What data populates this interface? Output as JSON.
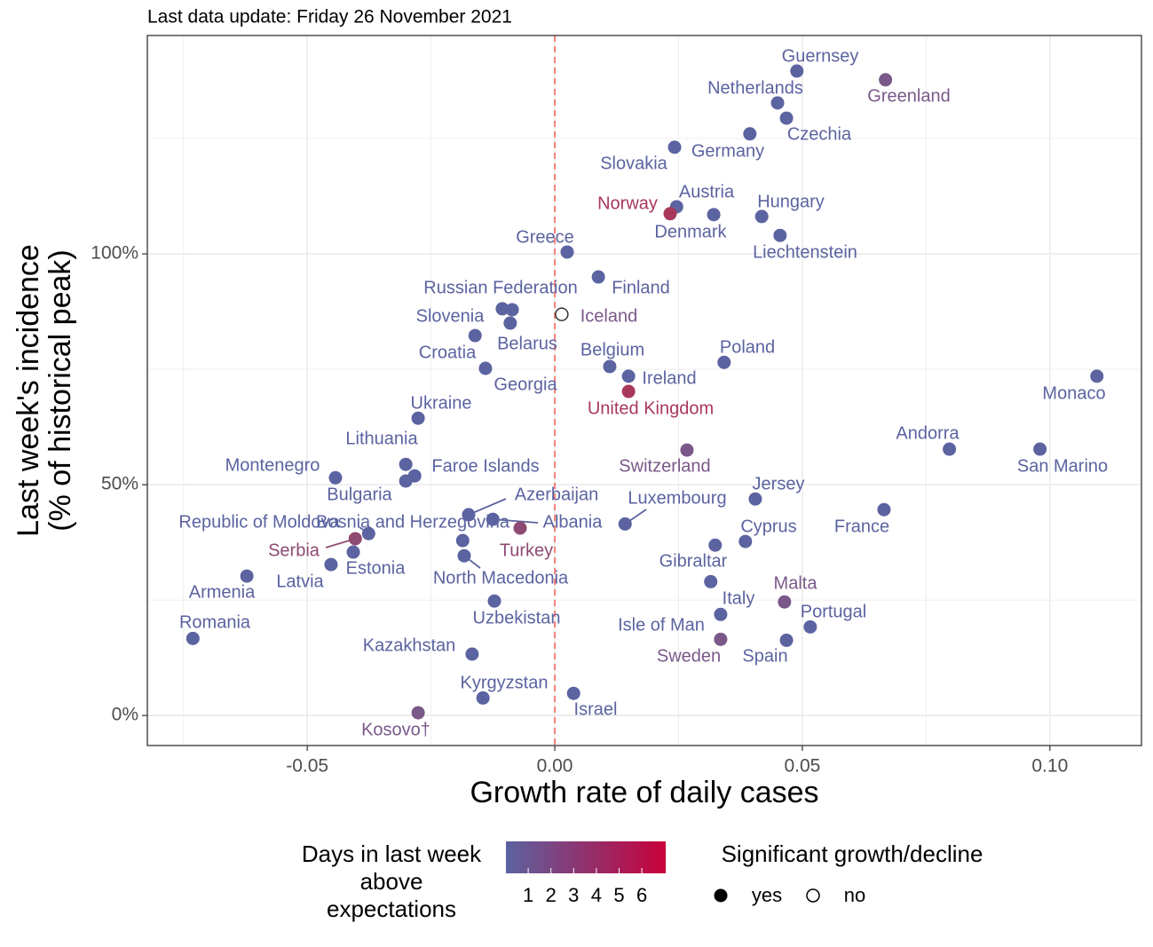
{
  "chart_data": {
    "type": "scatter",
    "title": "Last data update: Friday 26 November 2021",
    "xlabel": "Growth rate of daily cases",
    "ylabel": [
      "Last week's incidence",
      "(% of historical peak)"
    ],
    "xlim": [
      -0.0823,
      0.1185
    ],
    "ylim": [
      -6.5,
      147.3
    ],
    "xticks": [
      -0.05,
      {
        "value": 0,
        "label": "0.00"
      },
      0.05,
      {
        "value": 0.1,
        "label": "0.10"
      }
    ],
    "yticks": [
      {
        "value": 0,
        "label": "0%"
      },
      {
        "value": 50,
        "label": "50%"
      },
      {
        "value": 100,
        "label": "100%"
      }
    ],
    "minor_xticks": [
      -0.075,
      -0.025,
      0.025,
      0.075
    ],
    "minor_yticks": [
      25,
      75,
      125
    ],
    "grid": true,
    "vline": 0,
    "vline_color": "#f8766d",
    "labels": [
      "Guernsey",
      "Greenland",
      "Netherlands",
      "Czechia",
      "Germany",
      "Slovakia",
      "Austria",
      "Norway",
      "Denmark",
      "Hungary",
      "Liechtenstein",
      "Greece",
      "Finland",
      "Russian Federation",
      "Slovenia",
      "Belarus",
      "Croatia",
      "Georgia",
      "Iceland",
      "Belgium",
      "Ireland",
      "United Kingdom",
      "Poland",
      "Monaco",
      "Ukraine",
      "Andorra",
      "San Marino",
      "Switzerland",
      "Lithuania",
      "Faroe Islands",
      "Montenegro",
      "Bulgaria",
      "Jersey",
      "Luxembourg",
      "France",
      "Azerbaijan",
      "Albania",
      "Turkey",
      "Republic of Moldova",
      "Serbia",
      "Bosnia and Herzegovina",
      "North Macedonia",
      "Estonia",
      "Latvia",
      "Armenia",
      "Romania",
      "Uzbekistan",
      "Kazakhstan",
      "Kyrgyzstan",
      "Kosovo†",
      "Israel",
      "Cyprus",
      "Gibraltar",
      "Italy",
      "Isle of Man",
      "Sweden",
      "Malta",
      "Portugal",
      "Spain"
    ],
    "x": [
      0.0489,
      0.0668,
      0.045,
      0.0468,
      0.0394,
      0.0242,
      0.0246,
      0.0233,
      0.0321,
      0.0418,
      0.0455,
      0.0025,
      0.0088,
      -0.0106,
      -0.0086,
      -0.009,
      -0.0161,
      -0.014,
      0.0014,
      0.0111,
      0.0149,
      0.0149,
      0.0342,
      0.1095,
      -0.0276,
      0.0797,
      0.098,
      0.0267,
      -0.0301,
      -0.0283,
      -0.0443,
      -0.0301,
      0.0405,
      0.0142,
      0.0665,
      -0.0174,
      -0.0125,
      -0.007,
      -0.0376,
      -0.0403,
      -0.0186,
      -0.0183,
      -0.0407,
      -0.0452,
      -0.0622,
      -0.0731,
      -0.0122,
      -0.0167,
      -0.0145,
      -0.0276,
      0.0038,
      0.0385,
      0.0324,
      0.0315,
      0.0335,
      0.0335,
      0.0464,
      0.0516,
      0.0468
    ],
    "y": [
      139.6,
      137.7,
      132.7,
      129.4,
      126.0,
      123.1,
      110.2,
      108.7,
      108.5,
      108.1,
      104.0,
      100.4,
      95.0,
      88.1,
      87.9,
      85.0,
      82.3,
      75.2,
      86.9,
      75.6,
      73.5,
      70.2,
      76.5,
      73.5,
      64.4,
      57.7,
      57.7,
      57.5,
      54.4,
      51.9,
      51.5,
      50.8,
      46.9,
      41.5,
      44.6,
      43.5,
      42.5,
      40.6,
      39.4,
      38.3,
      37.9,
      34.6,
      35.4,
      32.7,
      30.2,
      16.7,
      24.8,
      13.3,
      3.8,
      0.6,
      4.8,
      37.7,
      36.9,
      29.0,
      21.9,
      16.5,
      24.6,
      19.2,
      16.3
    ],
    "colors": [
      "#5b63a0",
      "#7a5889",
      "#5b63a0",
      "#5b63a0",
      "#5b63a0",
      "#5b63a0",
      "#5b63a0",
      "#a8385b",
      "#5b63a0",
      "#5b63a0",
      "#5b63a0",
      "#5b63a0",
      "#5b63a0",
      "#5b63a0",
      "#5b63a0",
      "#5b63a0",
      "#5b63a0",
      "#5b63a0",
      "#7a5889",
      "#5b63a0",
      "#5b63a0",
      "#a8385b",
      "#5b63a0",
      "#5b63a0",
      "#5b63a0",
      "#5b63a0",
      "#5b63a0",
      "#7a5889",
      "#5b63a0",
      "#5b63a0",
      "#5b63a0",
      "#5b63a0",
      "#5b63a0",
      "#5b63a0",
      "#5b63a0",
      "#5b63a0",
      "#5b63a0",
      "#8e4a72",
      "#5b63a0",
      "#8e4a72",
      "#5b63a0",
      "#5b63a0",
      "#5b63a0",
      "#5b63a0",
      "#5b63a0",
      "#5b63a0",
      "#5b63a0",
      "#5b63a0",
      "#5b63a0",
      "#7a5889",
      "#5b63a0",
      "#5b63a0",
      "#5b63a0",
      "#5b63a0",
      "#5b63a0",
      "#7a5889",
      "#7a5889",
      "#5b63a0",
      "#5b63a0"
    ],
    "significant": [
      true,
      true,
      true,
      true,
      true,
      true,
      true,
      true,
      true,
      true,
      true,
      true,
      true,
      true,
      true,
      true,
      true,
      true,
      false,
      true,
      true,
      true,
      true,
      true,
      true,
      true,
      true,
      true,
      true,
      true,
      true,
      true,
      true,
      true,
      true,
      true,
      true,
      true,
      true,
      true,
      true,
      true,
      true,
      true,
      true,
      true,
      true,
      true,
      true,
      true,
      true,
      true,
      true,
      true,
      true,
      true,
      true,
      true,
      true
    ],
    "legend": {
      "color_title": [
        "Days in last week",
        "above",
        "expectations"
      ],
      "colorbar_lim": [
        0.02,
        7.05
      ],
      "colorbar_ticks": [
        1,
        2,
        3,
        4,
        5,
        6
      ],
      "colorbar_colors": [
        "#5b63a0",
        "#c8003a"
      ],
      "shape_title": "Significant growth/decline",
      "shape_labels": [
        "yes",
        "no"
      ]
    }
  }
}
